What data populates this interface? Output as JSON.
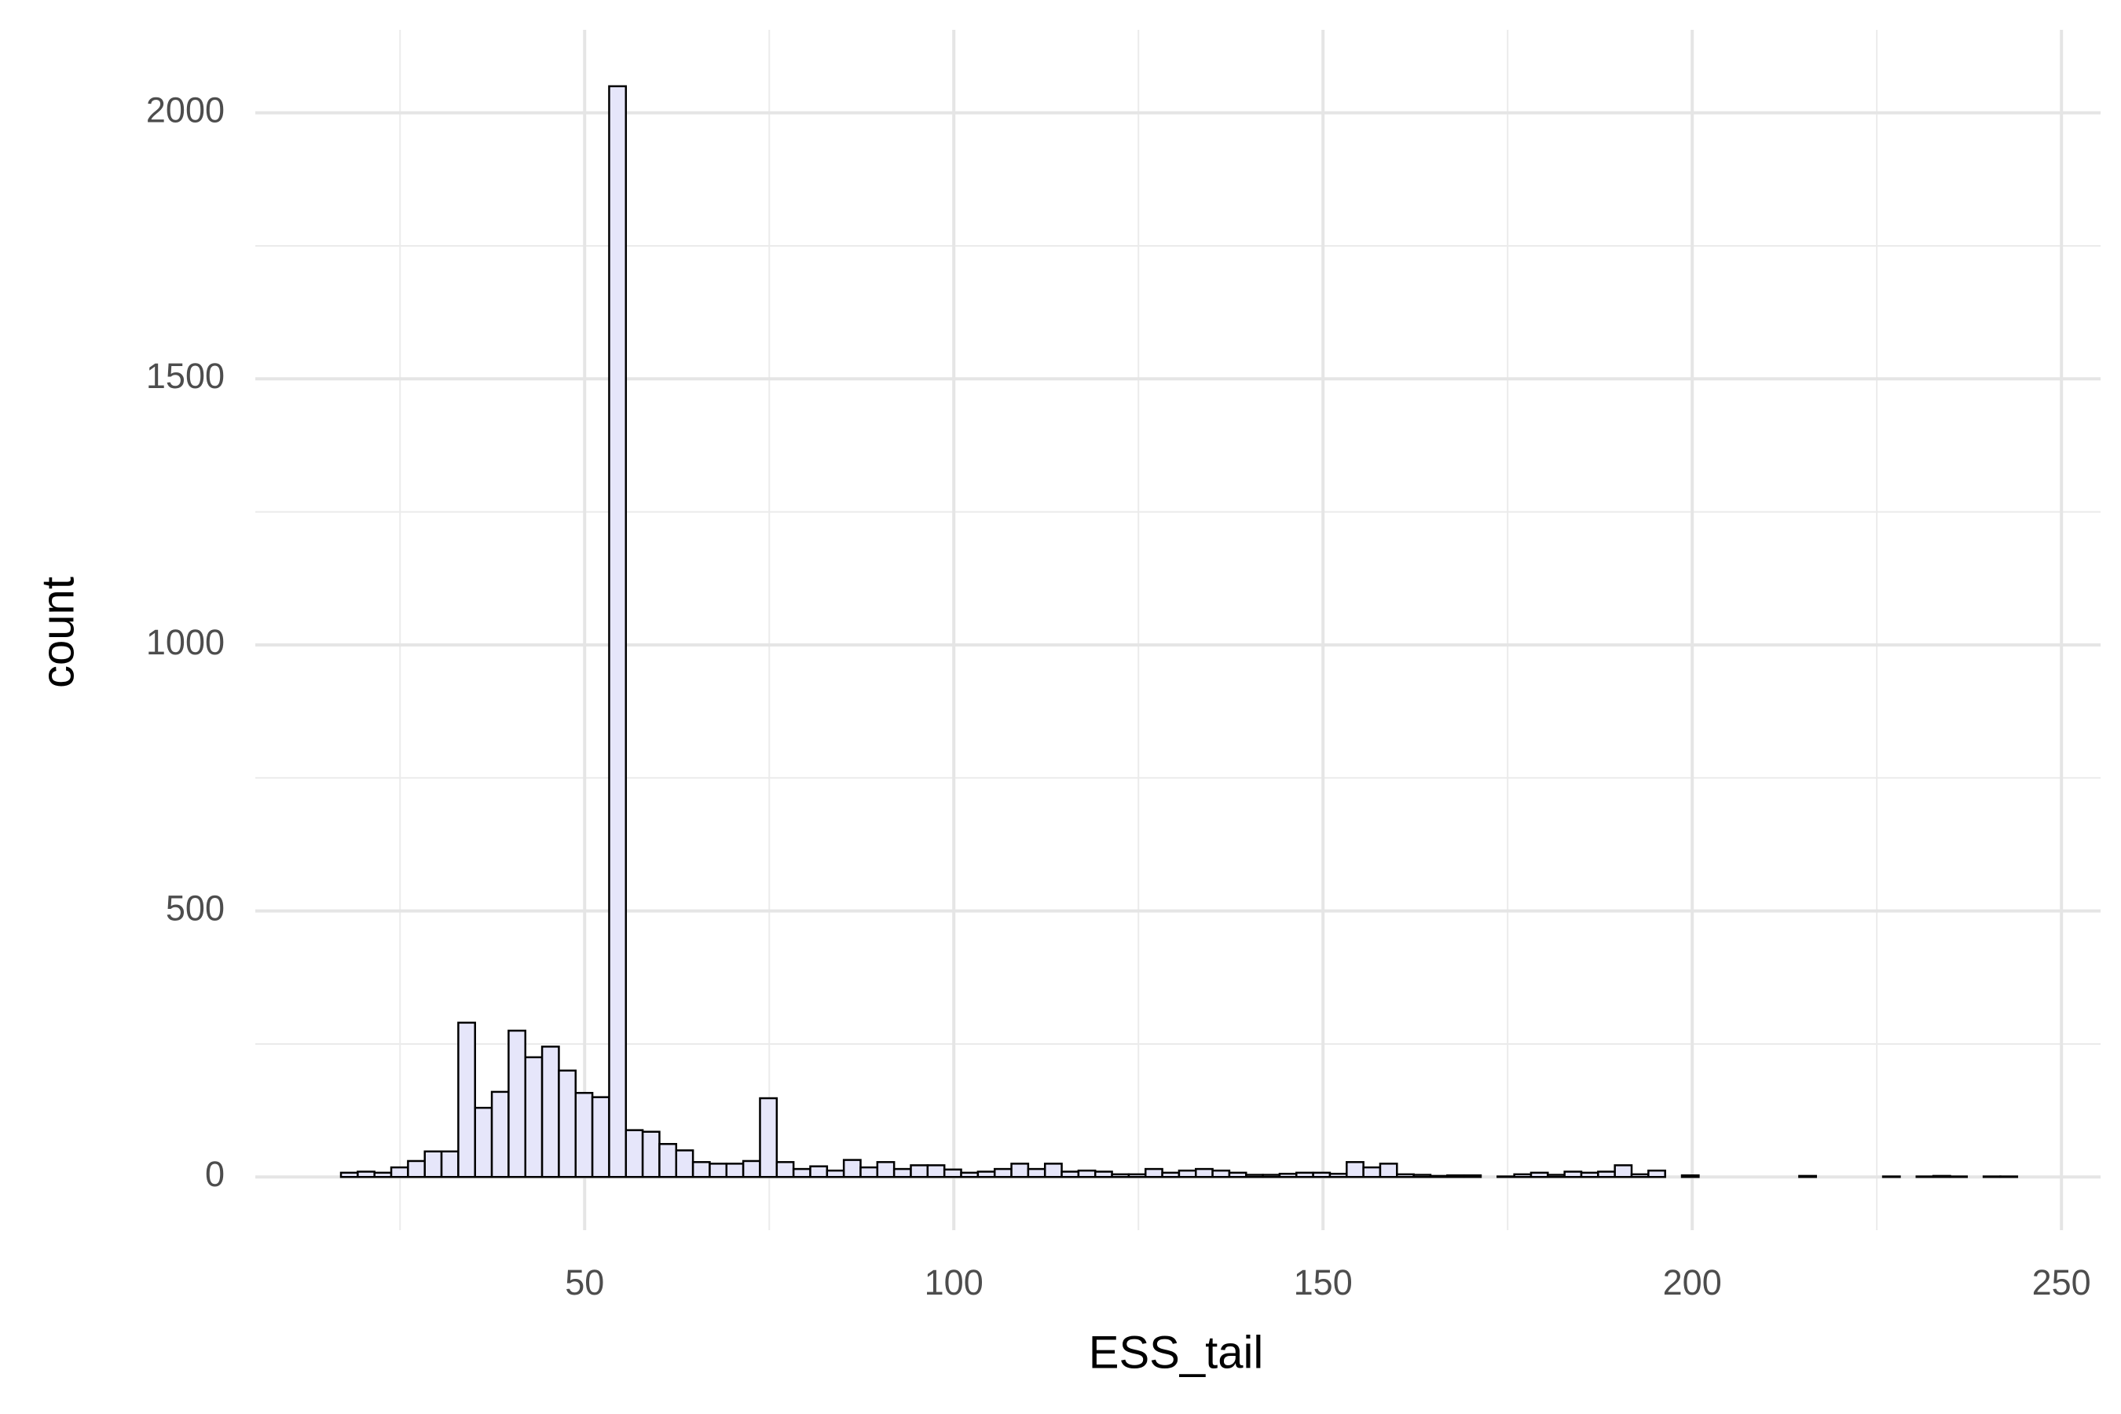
{
  "chart_data": {
    "type": "histogram",
    "x_label": "ESS_tail",
    "y_label": "count",
    "bins": [
      17,
      19.27,
      21.54,
      23.81,
      26.08,
      28.35,
      30.62,
      32.89,
      35.16,
      37.43,
      39.7,
      41.97,
      44.24,
      46.51,
      48.78,
      51.05,
      53.32,
      55.59,
      57.86,
      60.13,
      62.4,
      64.67,
      66.94,
      69.21,
      71.48,
      73.75,
      76.02,
      78.29,
      80.56,
      82.83,
      85.1,
      87.37,
      89.64,
      91.91,
      94.18,
      96.45,
      98.72,
      100.99,
      103.26,
      105.53,
      107.8,
      110.07,
      112.34,
      114.61,
      116.88,
      119.15,
      121.42,
      123.69,
      125.96,
      128.23,
      130.5,
      132.77,
      135.04,
      137.31,
      139.58,
      141.85,
      144.12,
      146.39,
      148.66,
      150.93,
      153.2,
      155.47,
      157.74,
      160.01,
      162.28,
      164.55,
      166.82,
      169.09,
      171.36,
      173.63,
      175.9,
      178.17,
      180.44,
      182.71,
      184.98,
      187.25,
      189.52,
      191.79,
      194.06,
      196.33,
      198.6,
      200.87,
      203.14,
      205.41,
      207.68,
      209.95,
      212.22,
      214.49,
      216.76,
      219.03,
      221.3,
      223.57,
      225.84,
      228.11,
      230.38,
      232.65,
      234.92,
      237.19,
      239.46,
      241.73,
      244
    ],
    "values": [
      8,
      10,
      8,
      18,
      30,
      48,
      48,
      290,
      130,
      160,
      275,
      225,
      245,
      200,
      158,
      150,
      2050,
      88,
      85,
      62,
      50,
      28,
      25,
      25,
      30,
      148,
      28,
      15,
      20,
      12,
      32,
      18,
      28,
      15,
      22,
      22,
      14,
      8,
      10,
      15,
      25,
      15,
      25,
      10,
      12,
      10,
      5,
      5,
      15,
      8,
      12,
      15,
      12,
      8,
      4,
      4,
      6,
      8,
      8,
      6,
      28,
      18,
      25,
      5,
      4,
      2,
      3,
      3,
      0,
      1,
      5,
      8,
      4,
      10,
      8,
      10,
      22,
      5,
      12,
      0,
      3,
      0,
      0,
      0,
      0,
      0,
      0,
      2,
      0,
      0,
      0,
      0,
      1,
      0,
      1,
      2,
      1,
      0,
      1,
      1
    ],
    "color": "#e6e6fa",
    "edge_color": "#000000",
    "xlim": [
      5.4,
      255.3
    ],
    "xticks": [
      50,
      100,
      150,
      200,
      250
    ],
    "xminor": [
      25,
      75,
      125,
      175,
      225
    ],
    "ylim": [
      -100,
      2156
    ],
    "yticks": [
      0,
      500,
      1000,
      1500,
      2000
    ],
    "yminor": [
      250,
      750,
      1250,
      1750
    ],
    "grid": true
  }
}
